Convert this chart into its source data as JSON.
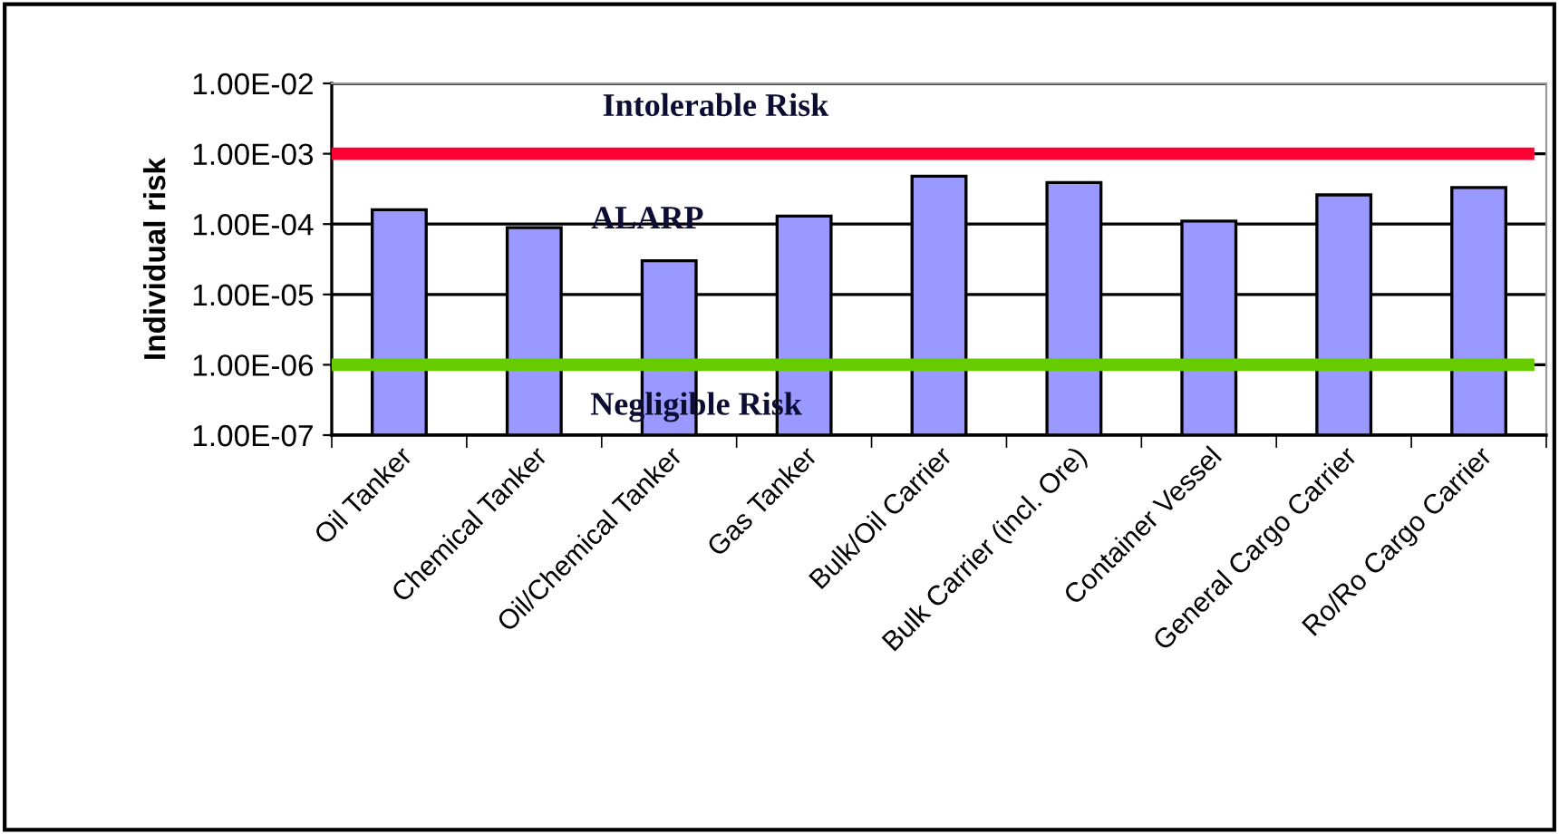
{
  "chart_data": {
    "type": "bar",
    "ylabel": "Individual risk",
    "categories": [
      "Oil Tanker",
      "Chemical Tanker",
      "Oil/Chemical Tanker",
      "Gas Tanker",
      "Bulk/Oil Carrier",
      "Bulk Carrier (incl. Ore)",
      "Container Vessel",
      "General Cargo Carrier",
      "Ro/Ro Cargo Carrier"
    ],
    "values": [
      0.00016,
      8.9e-05,
      3e-05,
      0.00013,
      0.00048,
      0.00039,
      0.00011,
      0.00026,
      0.00033
    ],
    "color": "#9999ff",
    "log": "y",
    "ylim": [
      1e-07,
      0.01
    ],
    "yticks": [
      {
        "value": 1e-07,
        "label": "1.00E-07"
      },
      {
        "value": 1e-06,
        "label": "1.00E-06"
      },
      {
        "value": 1e-05,
        "label": "1.00E-05"
      },
      {
        "value": 0.0001,
        "label": "1.00E-04"
      },
      {
        "value": 0.001,
        "label": "1.00E-03"
      },
      {
        "value": 0.01,
        "label": "1.00E-02"
      }
    ],
    "grid": "y",
    "ref_lines": [
      {
        "axis": "y",
        "value": 0.001,
        "color": "#ff0033"
      },
      {
        "axis": "y",
        "value": 1e-06,
        "color": "#66cc00"
      }
    ],
    "annotations": [
      "Intolerable Risk",
      "ALARP",
      "Negligible Risk"
    ]
  }
}
